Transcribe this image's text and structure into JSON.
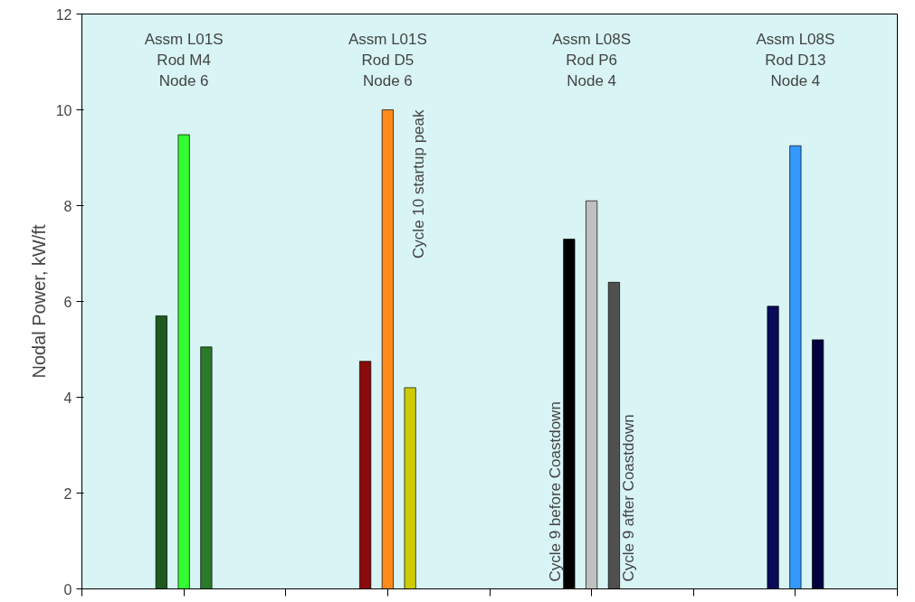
{
  "chart_data": {
    "type": "bar",
    "ylabel": "Nodal Power, kW/ft",
    "categories": [
      null,
      null,
      null,
      null
    ],
    "series": [
      {
        "name": "Cycle 9 before Coastdown",
        "colors": [
          "#1e5a1e",
          "#8b0a0a",
          "#000000",
          "#0a0a5a"
        ],
        "values": [
          5.7,
          4.75,
          7.3,
          5.9
        ]
      },
      {
        "name": "Cycle 10 startup peak",
        "colors": [
          "#33ff33",
          "#ff8c1a",
          "#c0c0c0",
          "#3399ff"
        ],
        "values": [
          9.48,
          10.0,
          8.1,
          9.25
        ]
      },
      {
        "name": "Cycle 9 after Coastdown",
        "colors": [
          "#2a7a2a",
          "#cccc00",
          "#505050",
          "#000040"
        ],
        "values": [
          5.05,
          4.2,
          6.4,
          5.2
        ]
      }
    ],
    "annotations": [
      "Assm L01S\nRod M4\nNode 6",
      "Assm L01S\nRod D5\nNode 6",
      "Assm L08S\nRod P6\nNode 4",
      "Assm L08S\nRod D13\nNode 4"
    ],
    "ylim": [
      0,
      12
    ],
    "yticks": [
      0,
      2,
      4,
      6,
      8,
      10,
      12
    ],
    "grid": false,
    "tick_labels": "y"
  }
}
